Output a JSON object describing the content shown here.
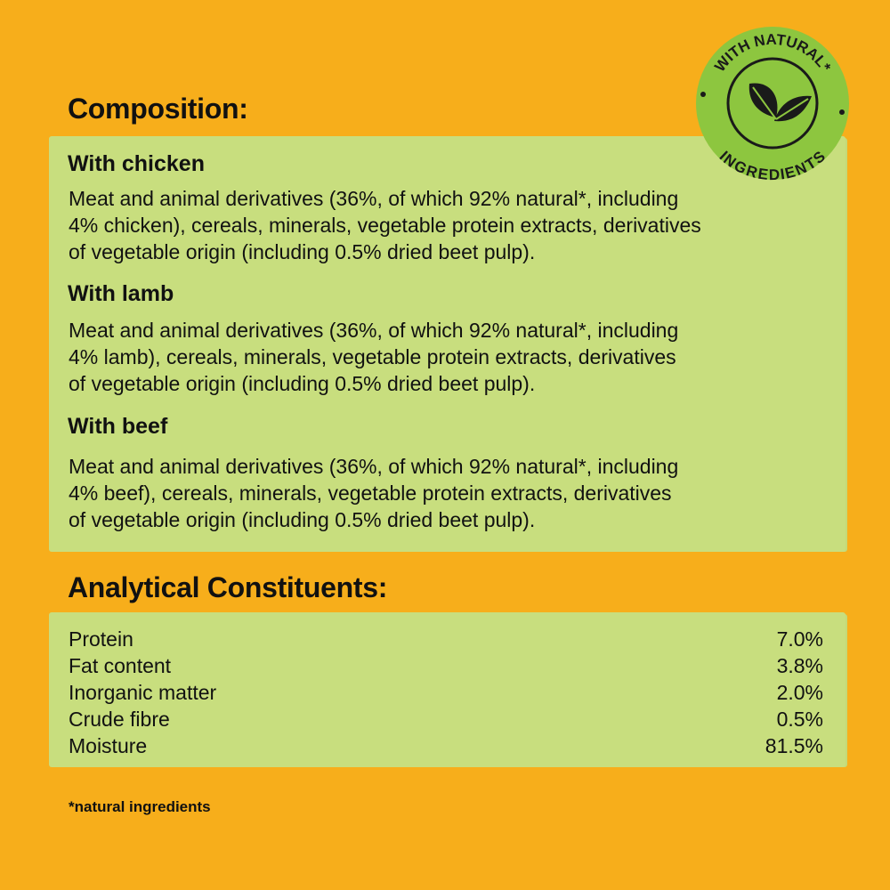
{
  "colors": {
    "background": "#F7AE1B",
    "panel": "#C8DE7E",
    "badge": "#8DC63F",
    "text": "#111111"
  },
  "badge": {
    "top_text": "WITH NATURAL*",
    "bottom_text": "INGREDIENTS",
    "icon": "leaves-icon"
  },
  "composition": {
    "title": "Composition:",
    "sections": [
      {
        "heading": "With chicken",
        "lines": [
          "Meat and animal derivatives (36%, of which 92% natural*, including",
          "4% chicken), cereals, minerals, vegetable protein extracts, derivatives",
          "of vegetable origin (including 0.5% dried beet pulp)."
        ]
      },
      {
        "heading": "With lamb",
        "lines": [
          "Meat and animal derivatives (36%, of which 92% natural*, including",
          "4% lamb), cereals, minerals, vegetable protein extracts, derivatives",
          "of vegetable origin (including 0.5% dried beet pulp)."
        ]
      },
      {
        "heading": "With beef",
        "lines": [
          "Meat and animal derivatives (36%, of which 92% natural*, including",
          "4% beef), cereals, minerals, vegetable protein extracts, derivatives",
          "of vegetable origin (including 0.5% dried beet pulp)."
        ]
      }
    ]
  },
  "analytical": {
    "title": "Analytical Constituents:",
    "rows": [
      {
        "label": "Protein",
        "value": "7.0%"
      },
      {
        "label": "Fat content",
        "value": "3.8%"
      },
      {
        "label": "Inorganic matter",
        "value": "2.0%"
      },
      {
        "label": "Crude fibre",
        "value": "0.5%"
      },
      {
        "label": "Moisture",
        "value": "81.5%"
      }
    ]
  },
  "footnote": "*natural ingredients"
}
